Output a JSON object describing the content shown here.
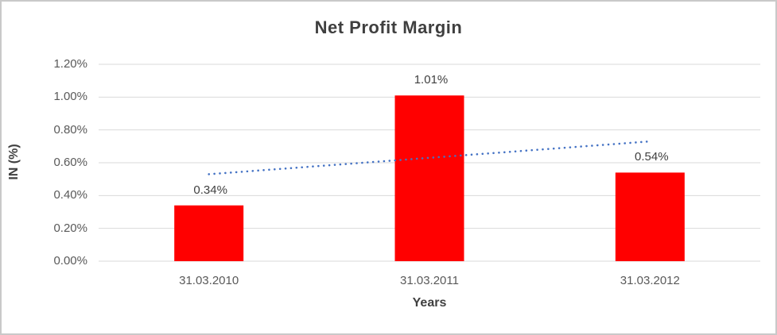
{
  "chart_data": {
    "type": "bar",
    "title": "Net Profit Margin",
    "xlabel": "Years",
    "ylabel": "IN (%)",
    "categories": [
      "31.03.2010",
      "31.03.2011",
      "31.03.2012"
    ],
    "values": [
      0.34,
      1.01,
      0.54
    ],
    "data_labels": [
      "0.34%",
      "1.01%",
      "0.54%"
    ],
    "ylim": [
      0,
      1.2
    ],
    "y_ticks": [
      0,
      0.2,
      0.4,
      0.6,
      0.8,
      1.0,
      1.2
    ],
    "y_tick_labels": [
      "0.00%",
      "0.20%",
      "0.40%",
      "0.60%",
      "0.80%",
      "1.00%",
      "1.20%"
    ],
    "grid": true,
    "legend": "none",
    "bar_color": "#FF0000",
    "trendline": {
      "type": "linear",
      "style": "dotted",
      "color": "#4472C4",
      "endpoint_values": [
        0.53,
        0.73
      ]
    },
    "colors": {
      "gridline": "#D9D9D9",
      "title_text": "#3F3F3F",
      "tick_text": "#595959",
      "label_text": "#404040",
      "background": "#FFFFFF",
      "border": "#C9C9C9"
    }
  }
}
